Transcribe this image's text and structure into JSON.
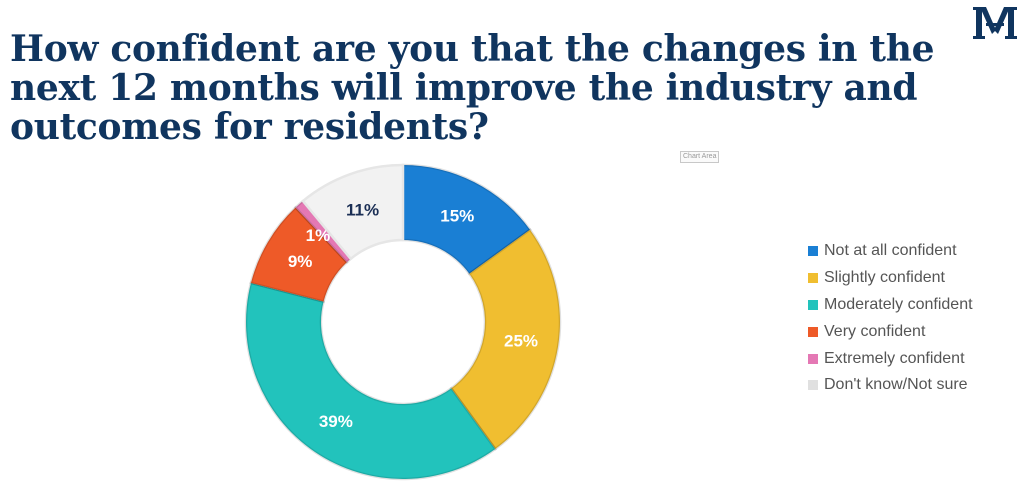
{
  "title": "How confident are you that the changes in the next 12 months will improve the industry and outcomes for residents?",
  "logo": {
    "text": "M",
    "icon": "monogram-logo-icon",
    "color": "#10355f"
  },
  "chart_area_tooltip": "Chart Area",
  "chart_data": {
    "type": "pie",
    "variant": "donut",
    "title": "How confident are you that the changes in the next 12 months will improve the industry and outcomes for residents?",
    "unit": "%",
    "legend_position": "right",
    "slices": [
      {
        "label": "Not at all confident",
        "value": 15,
        "display": "15%",
        "color": "#1a7fd4",
        "text_color": "#ffffff"
      },
      {
        "label": "Slightly confident",
        "value": 25,
        "display": "25%",
        "color": "#f0be30",
        "text_color": "#ffffff"
      },
      {
        "label": "Moderately confident",
        "value": 39,
        "display": "39%",
        "color": "#22c3bc",
        "text_color": "#ffffff"
      },
      {
        "label": "Very confident",
        "value": 9,
        "display": "9%",
        "color": "#ee5a28",
        "text_color": "#ffffff"
      },
      {
        "label": "Extremely confident",
        "value": 1,
        "display": "1%",
        "color": "#e478b4",
        "text_color": "#ffffff"
      },
      {
        "label": "Don't know/Not sure",
        "value": 11,
        "display": "11%",
        "color": "#f2f2f2",
        "text_color": "#1b2f55"
      }
    ]
  }
}
